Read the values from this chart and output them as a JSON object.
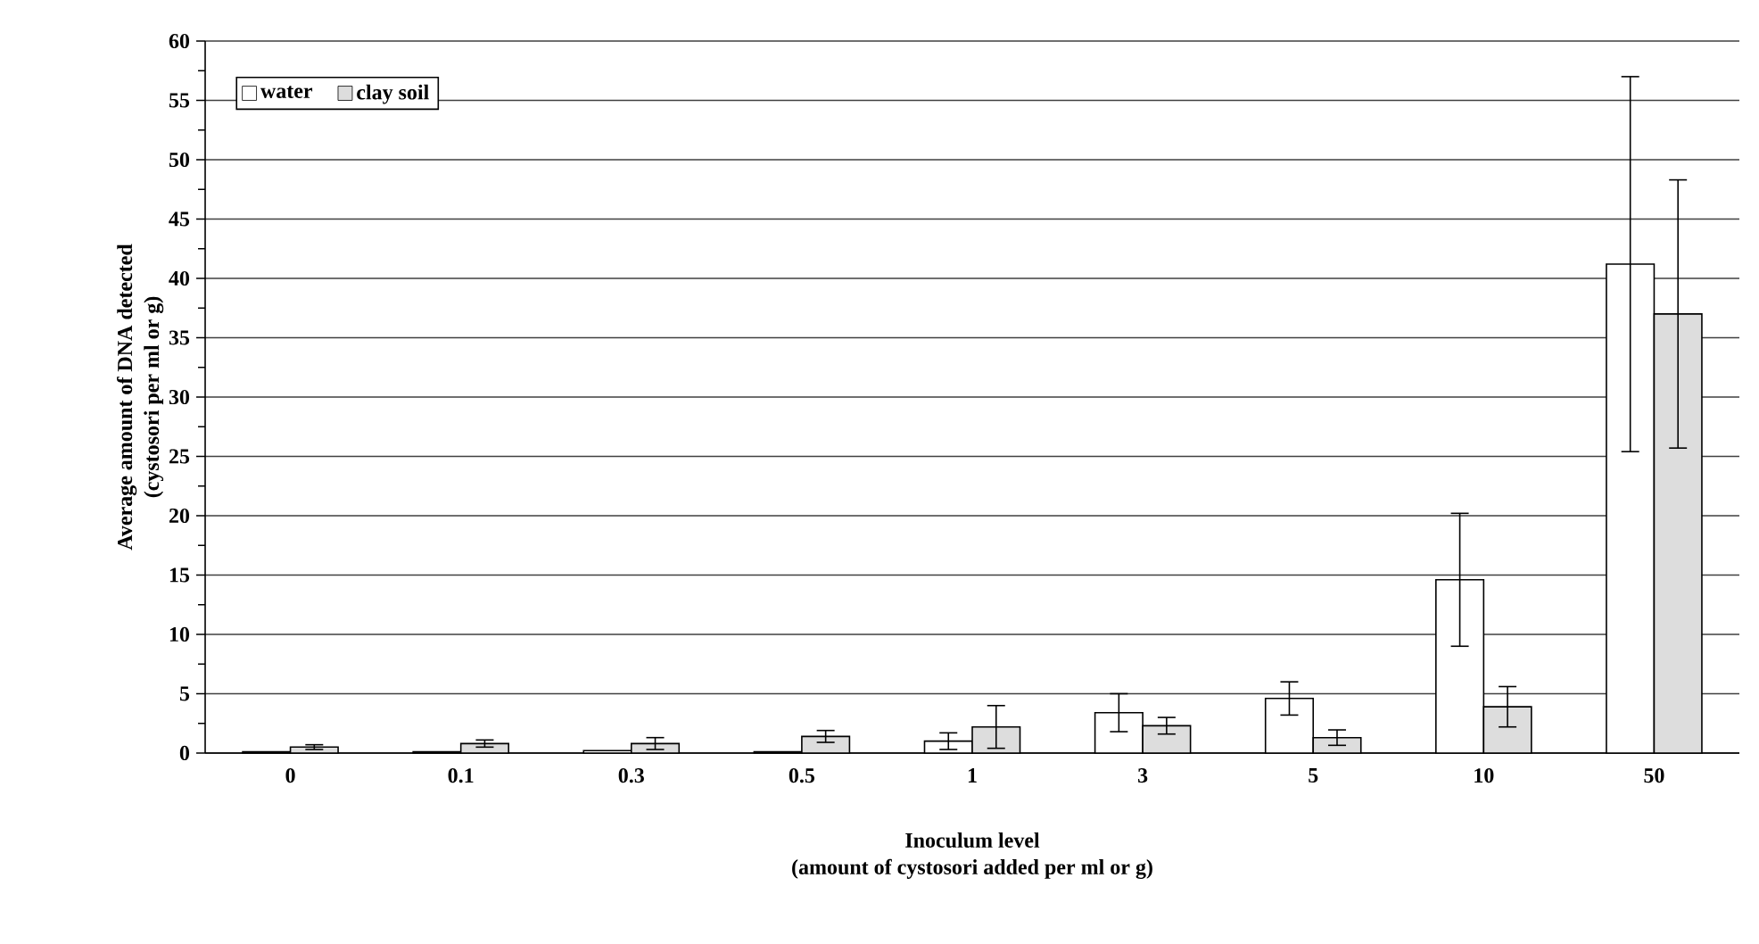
{
  "chart_data": {
    "type": "bar",
    "xlabel": "Inoculum level\n(amount of cystosori added per ml or g)",
    "ylabel": "Average amount of DNA detected\n(cystosori per ml or g)",
    "categories": [
      "0",
      "0.1",
      "0.3",
      "0.5",
      "1",
      "3",
      "5",
      "10",
      "50"
    ],
    "series": [
      {
        "name": "water",
        "color": "#ffffff",
        "values": [
          0.1,
          0.1,
          0.2,
          0.1,
          1.0,
          3.4,
          4.6,
          14.6,
          41.2
        ],
        "errors": [
          null,
          null,
          null,
          null,
          0.7,
          1.6,
          1.4,
          5.6,
          15.8
        ]
      },
      {
        "name": "clay soil",
        "color": "#dddddd",
        "values": [
          0.5,
          0.8,
          0.8,
          1.4,
          2.2,
          2.3,
          1.3,
          3.9,
          37.0
        ],
        "errors": [
          0.2,
          0.3,
          0.5,
          0.5,
          1.8,
          0.7,
          0.65,
          1.7,
          11.3
        ]
      }
    ],
    "ylim": [
      0,
      60
    ],
    "yticks": [
      0,
      5,
      10,
      15,
      20,
      25,
      30,
      35,
      40,
      45,
      50,
      55,
      60
    ],
    "grid": "y",
    "legend": "top left"
  }
}
